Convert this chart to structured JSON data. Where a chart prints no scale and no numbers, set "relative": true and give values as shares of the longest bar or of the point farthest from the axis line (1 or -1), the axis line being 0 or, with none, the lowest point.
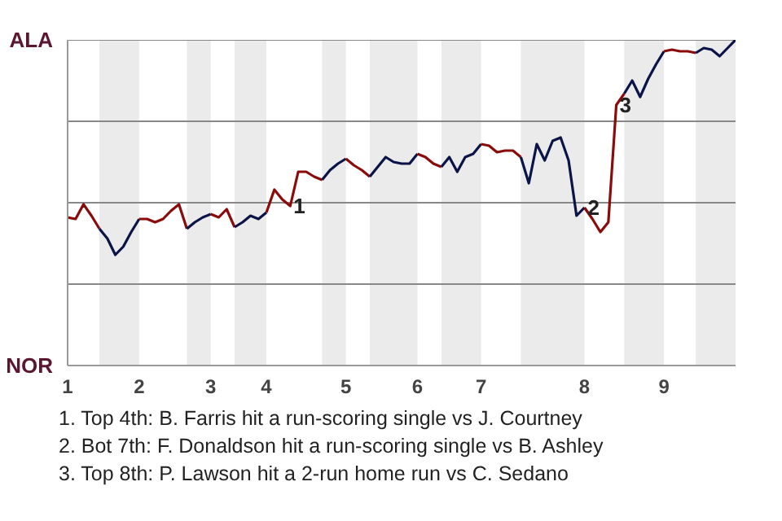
{
  "chart_data": {
    "type": "line",
    "relative": true,
    "categories": [
      "1",
      null,
      null,
      null,
      null,
      null,
      null,
      null,
      null,
      "2",
      null,
      null,
      null,
      null,
      null,
      null,
      null,
      null,
      "3",
      null,
      null,
      null,
      null,
      null,
      null,
      "4",
      null,
      null,
      null,
      null,
      null,
      null,
      null,
      null,
      null,
      "5",
      null,
      null,
      null,
      null,
      null,
      null,
      null,
      null,
      "6",
      null,
      null,
      null,
      null,
      null,
      null,
      null,
      "7",
      null,
      null,
      null,
      null,
      null,
      null,
      null,
      null,
      null,
      null,
      null,
      null,
      "8",
      null,
      null,
      null,
      null,
      null,
      null,
      null,
      null,
      null,
      "9",
      null,
      null,
      null,
      null,
      null,
      null,
      null,
      null,
      null
    ],
    "series": [
      {
        "color": "#8b0a0a",
        "values": [
          0.455,
          0.45,
          0.495,
          0.46,
          0.42,
          null,
          null,
          null,
          null,
          null,
          null,
          null,
          null,
          null,
          null,
          null,
          null,
          null,
          null,
          null,
          null,
          null,
          null,
          null,
          null,
          null,
          null,
          null,
          null,
          null,
          null,
          null,
          null,
          null,
          null,
          null,
          null,
          null,
          null,
          null,
          null,
          null,
          null,
          null,
          null,
          null,
          null,
          null,
          null,
          null,
          null,
          null,
          null,
          null,
          null,
          null,
          null,
          null,
          null,
          null,
          null,
          null,
          null,
          null,
          null,
          null,
          null,
          null,
          null,
          null,
          null,
          null,
          null,
          null,
          null,
          null,
          null,
          null,
          null,
          null,
          null,
          null,
          null,
          null,
          null
        ]
      },
      {
        "color": "#0b1446",
        "values": [
          null,
          null,
          null,
          null,
          0.42,
          0.39,
          0.34,
          0.365,
          0.41,
          0.45,
          null,
          null,
          null,
          null,
          null,
          null,
          null,
          null,
          null,
          null,
          null,
          null,
          null,
          null,
          null,
          null,
          null,
          null,
          null,
          null,
          null,
          null,
          null,
          null,
          null,
          null,
          null,
          null,
          null,
          null,
          null,
          null,
          null,
          null,
          null,
          null,
          null,
          null,
          null,
          null,
          null,
          null,
          null,
          null,
          null,
          null,
          null,
          null,
          null,
          null,
          null,
          null,
          null,
          null,
          null,
          null,
          null,
          null,
          null,
          null,
          null,
          null,
          null,
          null,
          null,
          null,
          null,
          null,
          null,
          null,
          null,
          null,
          null,
          null,
          null
        ]
      },
      {
        "color": "#8b0a0a",
        "values": [
          null,
          null,
          null,
          null,
          null,
          null,
          null,
          null,
          null,
          0.45,
          0.45,
          0.44,
          0.45,
          0.475,
          0.495,
          0.42,
          null,
          null,
          null,
          null,
          null,
          null,
          null,
          null,
          null,
          null,
          null,
          null,
          null,
          null,
          null,
          null,
          null,
          null,
          null,
          null,
          null,
          null,
          null,
          null,
          null,
          null,
          null,
          null,
          null,
          null,
          null,
          null,
          null,
          null,
          null,
          null,
          null,
          null,
          null,
          null,
          null,
          null,
          null,
          null,
          null,
          null,
          null,
          null,
          null,
          null,
          null,
          null,
          null,
          null,
          null,
          null,
          null,
          null,
          null,
          null,
          null,
          null,
          null,
          null,
          null,
          null,
          null,
          null,
          null
        ]
      },
      {
        "color": "#0b1446",
        "values": [
          null,
          null,
          null,
          null,
          null,
          null,
          null,
          null,
          null,
          null,
          null,
          null,
          null,
          null,
          null,
          0.42,
          0.44,
          0.455,
          0.465,
          null,
          null,
          null,
          null,
          null,
          null,
          null,
          null,
          null,
          null,
          null,
          null,
          null,
          null,
          null,
          null,
          null,
          null,
          null,
          null,
          null,
          null,
          null,
          null,
          null,
          null,
          null,
          null,
          null,
          null,
          null,
          null,
          null,
          null,
          null,
          null,
          null,
          null,
          null,
          null,
          null,
          null,
          null,
          null,
          null,
          null,
          null,
          null,
          null,
          null,
          null,
          null,
          null,
          null,
          null,
          null,
          null,
          null,
          null,
          null,
          null,
          null,
          null,
          null,
          null,
          null
        ]
      },
      {
        "color": "#8b0a0a",
        "values": [
          null,
          null,
          null,
          null,
          null,
          null,
          null,
          null,
          null,
          null,
          null,
          null,
          null,
          null,
          null,
          null,
          null,
          null,
          0.465,
          0.455,
          0.48,
          0.425,
          null,
          null,
          null,
          null,
          null,
          null,
          null,
          null,
          null,
          null,
          null,
          null,
          null,
          null,
          null,
          null,
          null,
          null,
          null,
          null,
          null,
          null,
          null,
          null,
          null,
          null,
          null,
          null,
          null,
          null,
          null,
          null,
          null,
          null,
          null,
          null,
          null,
          null,
          null,
          null,
          null,
          null,
          null,
          null,
          null,
          null,
          null,
          null,
          null,
          null,
          null,
          null,
          null,
          null,
          null,
          null,
          null,
          null,
          null,
          null,
          null,
          null,
          null
        ]
      },
      {
        "color": "#0b1446",
        "values": [
          null,
          null,
          null,
          null,
          null,
          null,
          null,
          null,
          null,
          null,
          null,
          null,
          null,
          null,
          null,
          null,
          null,
          null,
          null,
          null,
          null,
          0.425,
          0.44,
          0.46,
          0.45,
          0.47,
          null,
          null,
          null,
          null,
          null,
          null,
          null,
          null,
          null,
          null,
          null,
          null,
          null,
          null,
          null,
          null,
          null,
          null,
          null,
          null,
          null,
          null,
          null,
          null,
          null,
          null,
          null,
          null,
          null,
          null,
          null,
          null,
          null,
          null,
          null,
          null,
          null,
          null,
          null,
          null,
          null,
          null,
          null,
          null,
          null,
          null,
          null,
          null,
          null,
          null,
          null,
          null,
          null,
          null,
          null,
          null,
          null,
          null,
          null
        ]
      },
      {
        "color": "#8b0a0a",
        "values": [
          null,
          null,
          null,
          null,
          null,
          null,
          null,
          null,
          null,
          null,
          null,
          null,
          null,
          null,
          null,
          null,
          null,
          null,
          null,
          null,
          null,
          null,
          null,
          null,
          null,
          0.47,
          0.54,
          0.51,
          0.49,
          0.595,
          0.595,
          0.58,
          0.57,
          null,
          null,
          null,
          null,
          null,
          null,
          null,
          null,
          null,
          null,
          null,
          null,
          null,
          null,
          null,
          null,
          null,
          null,
          null,
          null,
          null,
          null,
          null,
          null,
          null,
          null,
          null,
          null,
          null,
          null,
          null,
          null,
          null,
          null,
          null,
          null,
          null,
          null,
          null,
          null,
          null,
          null,
          null,
          null,
          null,
          null,
          null,
          null,
          null,
          null,
          null,
          null
        ]
      },
      {
        "color": "#0b1446",
        "values": [
          null,
          null,
          null,
          null,
          null,
          null,
          null,
          null,
          null,
          null,
          null,
          null,
          null,
          null,
          null,
          null,
          null,
          null,
          null,
          null,
          null,
          null,
          null,
          null,
          null,
          null,
          null,
          null,
          null,
          null,
          null,
          null,
          0.57,
          0.6,
          0.62,
          0.635,
          null,
          null,
          null,
          null,
          null,
          null,
          null,
          null,
          null,
          null,
          null,
          null,
          null,
          null,
          null,
          null,
          null,
          null,
          null,
          null,
          null,
          null,
          null,
          null,
          null,
          null,
          null,
          null,
          null,
          null,
          null,
          null,
          null,
          null,
          null,
          null,
          null,
          null,
          null,
          null,
          null,
          null,
          null,
          null,
          null,
          null,
          null,
          null,
          null
        ]
      },
      {
        "color": "#8b0a0a",
        "values": [
          null,
          null,
          null,
          null,
          null,
          null,
          null,
          null,
          null,
          null,
          null,
          null,
          null,
          null,
          null,
          null,
          null,
          null,
          null,
          null,
          null,
          null,
          null,
          null,
          null,
          null,
          null,
          null,
          null,
          null,
          null,
          null,
          null,
          null,
          null,
          0.635,
          0.615,
          0.6,
          0.58,
          null,
          null,
          null,
          null,
          null,
          null,
          null,
          null,
          null,
          null,
          null,
          null,
          null,
          null,
          null,
          null,
          null,
          null,
          null,
          null,
          null,
          null,
          null,
          null,
          null,
          null,
          null,
          null,
          null,
          null,
          null,
          null,
          null,
          null,
          null,
          null,
          null,
          null,
          null,
          null,
          null,
          null,
          null,
          null,
          null,
          null
        ]
      },
      {
        "color": "#0b1446",
        "values": [
          null,
          null,
          null,
          null,
          null,
          null,
          null,
          null,
          null,
          null,
          null,
          null,
          null,
          null,
          null,
          null,
          null,
          null,
          null,
          null,
          null,
          null,
          null,
          null,
          null,
          null,
          null,
          null,
          null,
          null,
          null,
          null,
          null,
          null,
          null,
          null,
          null,
          null,
          0.58,
          0.61,
          0.64,
          0.625,
          0.62,
          0.62,
          0.65,
          null,
          null,
          null,
          null,
          null,
          null,
          null,
          null,
          null,
          null,
          null,
          null,
          null,
          null,
          null,
          null,
          null,
          null,
          null,
          null,
          null,
          null,
          null,
          null,
          null,
          null,
          null,
          null,
          null,
          null,
          null,
          null,
          null,
          null,
          null,
          null,
          null,
          null,
          null,
          null
        ]
      },
      {
        "color": "#8b0a0a",
        "values": [
          null,
          null,
          null,
          null,
          null,
          null,
          null,
          null,
          null,
          null,
          null,
          null,
          null,
          null,
          null,
          null,
          null,
          null,
          null,
          null,
          null,
          null,
          null,
          null,
          null,
          null,
          null,
          null,
          null,
          null,
          null,
          null,
          null,
          null,
          null,
          null,
          null,
          null,
          null,
          null,
          null,
          null,
          null,
          null,
          0.65,
          0.64,
          0.62,
          0.61,
          null,
          null,
          null,
          null,
          null,
          null,
          null,
          null,
          null,
          null,
          null,
          null,
          null,
          null,
          null,
          null,
          null,
          null,
          null,
          null,
          null,
          null,
          null,
          null,
          null,
          null,
          null,
          null,
          null,
          null,
          null,
          null,
          null,
          null,
          null,
          null,
          null
        ]
      },
      {
        "color": "#0b1446",
        "values": [
          null,
          null,
          null,
          null,
          null,
          null,
          null,
          null,
          null,
          null,
          null,
          null,
          null,
          null,
          null,
          null,
          null,
          null,
          null,
          null,
          null,
          null,
          null,
          null,
          null,
          null,
          null,
          null,
          null,
          null,
          null,
          null,
          null,
          null,
          null,
          null,
          null,
          null,
          null,
          null,
          null,
          null,
          null,
          null,
          null,
          null,
          null,
          0.61,
          0.64,
          0.595,
          0.64,
          0.65,
          0.68,
          null,
          null,
          null,
          null,
          null,
          null,
          null,
          null,
          null,
          null,
          null,
          null,
          null,
          null,
          null,
          null,
          null,
          null,
          null,
          null,
          null,
          null,
          null,
          null,
          null,
          null,
          null,
          null,
          null,
          null,
          null,
          null
        ]
      },
      {
        "color": "#8b0a0a",
        "values": [
          null,
          null,
          null,
          null,
          null,
          null,
          null,
          null,
          null,
          null,
          null,
          null,
          null,
          null,
          null,
          null,
          null,
          null,
          null,
          null,
          null,
          null,
          null,
          null,
          null,
          null,
          null,
          null,
          null,
          null,
          null,
          null,
          null,
          null,
          null,
          null,
          null,
          null,
          null,
          null,
          null,
          null,
          null,
          null,
          null,
          null,
          null,
          null,
          null,
          null,
          null,
          null,
          0.68,
          0.675,
          0.655,
          0.66,
          0.66,
          0.64,
          null,
          null,
          null,
          null,
          null,
          null,
          null,
          null,
          null,
          null,
          null,
          null,
          null,
          null,
          null,
          null,
          null,
          null,
          null,
          null,
          null,
          null,
          null,
          null,
          null,
          null,
          null
        ]
      },
      {
        "color": "#0b1446",
        "values": [
          null,
          null,
          null,
          null,
          null,
          null,
          null,
          null,
          null,
          null,
          null,
          null,
          null,
          null,
          null,
          null,
          null,
          null,
          null,
          null,
          null,
          null,
          null,
          null,
          null,
          null,
          null,
          null,
          null,
          null,
          null,
          null,
          null,
          null,
          null,
          null,
          null,
          null,
          null,
          null,
          null,
          null,
          null,
          null,
          null,
          null,
          null,
          null,
          null,
          null,
          null,
          null,
          null,
          null,
          null,
          null,
          null,
          0.64,
          0.56,
          0.68,
          0.63,
          0.69,
          0.7,
          0.63,
          0.46,
          0.485,
          null,
          null,
          null,
          null,
          null,
          null,
          null,
          null,
          null,
          null,
          null,
          null,
          null,
          null,
          null,
          null,
          null,
          null,
          null
        ]
      },
      {
        "color": "#8b0a0a",
        "values": [
          null,
          null,
          null,
          null,
          null,
          null,
          null,
          null,
          null,
          null,
          null,
          null,
          null,
          null,
          null,
          null,
          null,
          null,
          null,
          null,
          null,
          null,
          null,
          null,
          null,
          null,
          null,
          null,
          null,
          null,
          null,
          null,
          null,
          null,
          null,
          null,
          null,
          null,
          null,
          null,
          null,
          null,
          null,
          null,
          null,
          null,
          null,
          null,
          null,
          null,
          null,
          null,
          null,
          null,
          null,
          null,
          null,
          null,
          null,
          null,
          null,
          null,
          null,
          null,
          null,
          0.485,
          0.45,
          0.41,
          0.44,
          0.8,
          0.835,
          null,
          null,
          null,
          null,
          null,
          null,
          null,
          null,
          null,
          null,
          null,
          null,
          null,
          null
        ]
      },
      {
        "color": "#0b1446",
        "values": [
          null,
          null,
          null,
          null,
          null,
          null,
          null,
          null,
          null,
          null,
          null,
          null,
          null,
          null,
          null,
          null,
          null,
          null,
          null,
          null,
          null,
          null,
          null,
          null,
          null,
          null,
          null,
          null,
          null,
          null,
          null,
          null,
          null,
          null,
          null,
          null,
          null,
          null,
          null,
          null,
          null,
          null,
          null,
          null,
          null,
          null,
          null,
          null,
          null,
          null,
          null,
          null,
          null,
          null,
          null,
          null,
          null,
          null,
          null,
          null,
          null,
          null,
          null,
          null,
          null,
          null,
          null,
          null,
          null,
          null,
          0.835,
          0.875,
          0.825,
          0.88,
          0.925,
          0.965,
          null,
          null,
          null,
          null,
          null,
          null,
          null,
          null,
          null
        ]
      },
      {
        "color": "#8b0a0a",
        "values": [
          null,
          null,
          null,
          null,
          null,
          null,
          null,
          null,
          null,
          null,
          null,
          null,
          null,
          null,
          null,
          null,
          null,
          null,
          null,
          null,
          null,
          null,
          null,
          null,
          null,
          null,
          null,
          null,
          null,
          null,
          null,
          null,
          null,
          null,
          null,
          null,
          null,
          null,
          null,
          null,
          null,
          null,
          null,
          null,
          null,
          null,
          null,
          null,
          null,
          null,
          null,
          null,
          null,
          null,
          null,
          null,
          null,
          null,
          null,
          null,
          null,
          null,
          null,
          null,
          null,
          null,
          null,
          null,
          null,
          null,
          null,
          null,
          null,
          null,
          null,
          0.965,
          0.97,
          0.965,
          0.965,
          0.96,
          null,
          null,
          null,
          null,
          null
        ]
      },
      {
        "color": "#0b1446",
        "values": [
          null,
          null,
          null,
          null,
          null,
          null,
          null,
          null,
          null,
          null,
          null,
          null,
          null,
          null,
          null,
          null,
          null,
          null,
          null,
          null,
          null,
          null,
          null,
          null,
          null,
          null,
          null,
          null,
          null,
          null,
          null,
          null,
          null,
          null,
          null,
          null,
          null,
          null,
          null,
          null,
          null,
          null,
          null,
          null,
          null,
          null,
          null,
          null,
          null,
          null,
          null,
          null,
          null,
          null,
          null,
          null,
          null,
          null,
          null,
          null,
          null,
          null,
          null,
          null,
          null,
          null,
          null,
          null,
          null,
          null,
          null,
          null,
          null,
          null,
          null,
          null,
          null,
          null,
          null,
          0.96,
          0.975,
          0.97,
          0.95,
          0.975,
          1
        ]
      }
    ],
    "ref_lines": [
      {
        "axis": "y",
        "value": 0.25,
        "color": "#888888"
      },
      {
        "axis": "y",
        "value": 0.5,
        "color": "#888888"
      },
      {
        "axis": "y",
        "value": 0.75,
        "color": "#888888"
      },
      {
        "axis": "y",
        "value": 1,
        "color": "#888888"
      }
    ],
    "annotations": [
      "ALA",
      "NOR",
      {
        "text": "1",
        "y": 0.49
      },
      {
        "text": "2",
        "y": 0.485
      },
      {
        "text": "3",
        "y": 0.8
      },
      "1. Top 4th: B. Farris hit a run-scoring single vs J. Courtney",
      "2. Bot 7th: F. Donaldson hit a run-scoring single vs B. Ashley",
      "3. Top 8th: P. Lawson hit a 2-run home run vs C. Sedano"
    ]
  }
}
